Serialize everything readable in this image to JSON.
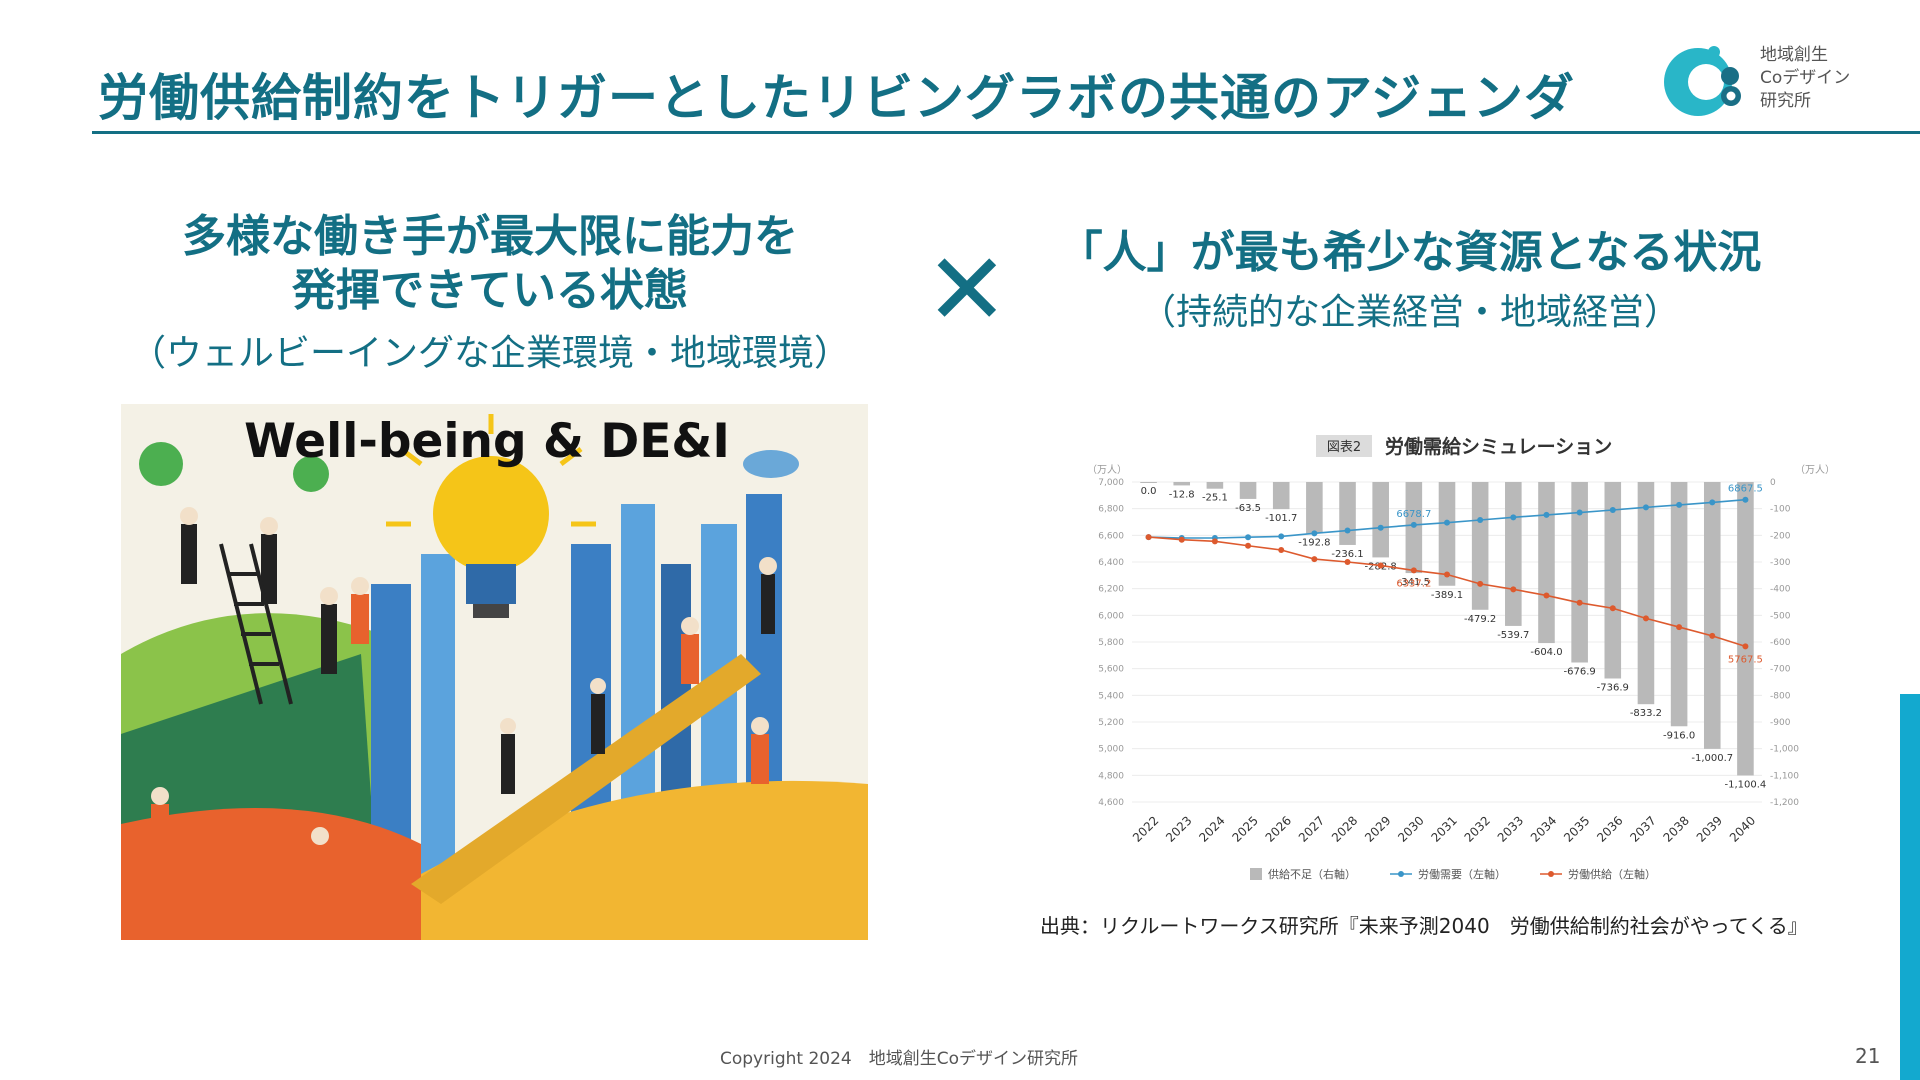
{
  "slide": {
    "title": "労働供給制約をトリガーとしたリビングラボの共通のアジェンダ",
    "page_number": "21",
    "footer": "Copyright 2024　地域創生Coデザイン研究所"
  },
  "logo": {
    "lines": [
      "地域創生",
      "Coデザイン",
      "研究所"
    ]
  },
  "left": {
    "heading_line1": "多様な働き手が最大限に能力を",
    "heading_line2": "発揮できている状態",
    "subheading": "（ウェルビーイングな企業環境・地域環境）",
    "image_title": "Well-being & DE&I"
  },
  "cross_symbol": "✕",
  "right": {
    "heading": "「人」が最も希少な資源となる状況",
    "subheading": "（持続的な企業経営・地域経営）",
    "source": "出典：リクルートワークス研究所『未来予測2040　労働供給制約社会がやってくる』"
  },
  "colors": {
    "brand": "#136f84",
    "accent": "#13a9cf",
    "bar": "#b9b9b9",
    "demand": "#3a95c8",
    "supply": "#dd5a2e"
  },
  "chart_data": {
    "type": "bar",
    "figure_label": "図表2",
    "title": "労働需給シミュレーション",
    "left_unit": "（万人）",
    "right_unit": "（万人）",
    "categories": [
      "2022",
      "2023",
      "2024",
      "2025",
      "2026",
      "2027",
      "2028",
      "2029",
      "2030",
      "2031",
      "2032",
      "2033",
      "2034",
      "2035",
      "2036",
      "2037",
      "2038",
      "2039",
      "2040"
    ],
    "left_ticks": [
      "7,000",
      "6,800",
      "6,600",
      "6,400",
      "6,200",
      "6,000",
      "5,800",
      "5,600",
      "5,400",
      "5,200",
      "5,000",
      "4,800",
      "4,600"
    ],
    "right_ticks": [
      "0",
      "-100",
      "-200",
      "-300",
      "-400",
      "-500",
      "-600",
      "-700",
      "-800",
      "-900",
      "-1,000",
      "-1,100",
      "-1,200"
    ],
    "left_ylim": [
      4600,
      7000
    ],
    "right_ylim": [
      -1200,
      0
    ],
    "series": [
      {
        "name": "供給不足（右軸）",
        "kind": "bar",
        "axis": "right",
        "values": [
          0.0,
          -12.8,
          -25.1,
          -63.5,
          -101.7,
          -192.8,
          -236.1,
          -282.8,
          -341.5,
          -389.1,
          -479.2,
          -539.7,
          -604.0,
          -676.9,
          -736.9,
          -833.2,
          -916.0,
          -1000.7,
          -1100.4
        ],
        "labels": [
          "0.0",
          "-12.8",
          "-25.1",
          "-63.5",
          "-101.7",
          "-192.8",
          "-236.1",
          "-282.8",
          "-341.5",
          "-389.1",
          "-479.2",
          "-539.7",
          "-604.0",
          "-676.9",
          "-736.9",
          "-833.2",
          "-916.0",
          "-1,000.7",
          "-1,100.4"
        ]
      },
      {
        "name": "労働需要（左軸）",
        "kind": "line",
        "axis": "left",
        "values": [
          6587,
          6580,
          6580,
          6586,
          6592,
          6615,
          6636,
          6657,
          6678,
          6695,
          6715,
          6735,
          6753,
          6771,
          6790,
          6810,
          6828,
          6847,
          6867
        ],
        "annotations": [
          {
            "index": 8,
            "label": "6678.7"
          },
          {
            "index": 18,
            "label": "6867.5"
          }
        ]
      },
      {
        "name": "労働供給（左軸）",
        "kind": "line",
        "axis": "left",
        "values": [
          6587,
          6567,
          6555,
          6522,
          6490,
          6422,
          6400,
          6374,
          6337,
          6306,
          6236,
          6195,
          6149,
          6094,
          6053,
          5977,
          5912,
          5846,
          5767
        ],
        "annotations": [
          {
            "index": 8,
            "label": "6337.2"
          },
          {
            "index": 18,
            "label": "5767.5"
          }
        ]
      }
    ],
    "legend_position": "bottom",
    "grid": true
  }
}
